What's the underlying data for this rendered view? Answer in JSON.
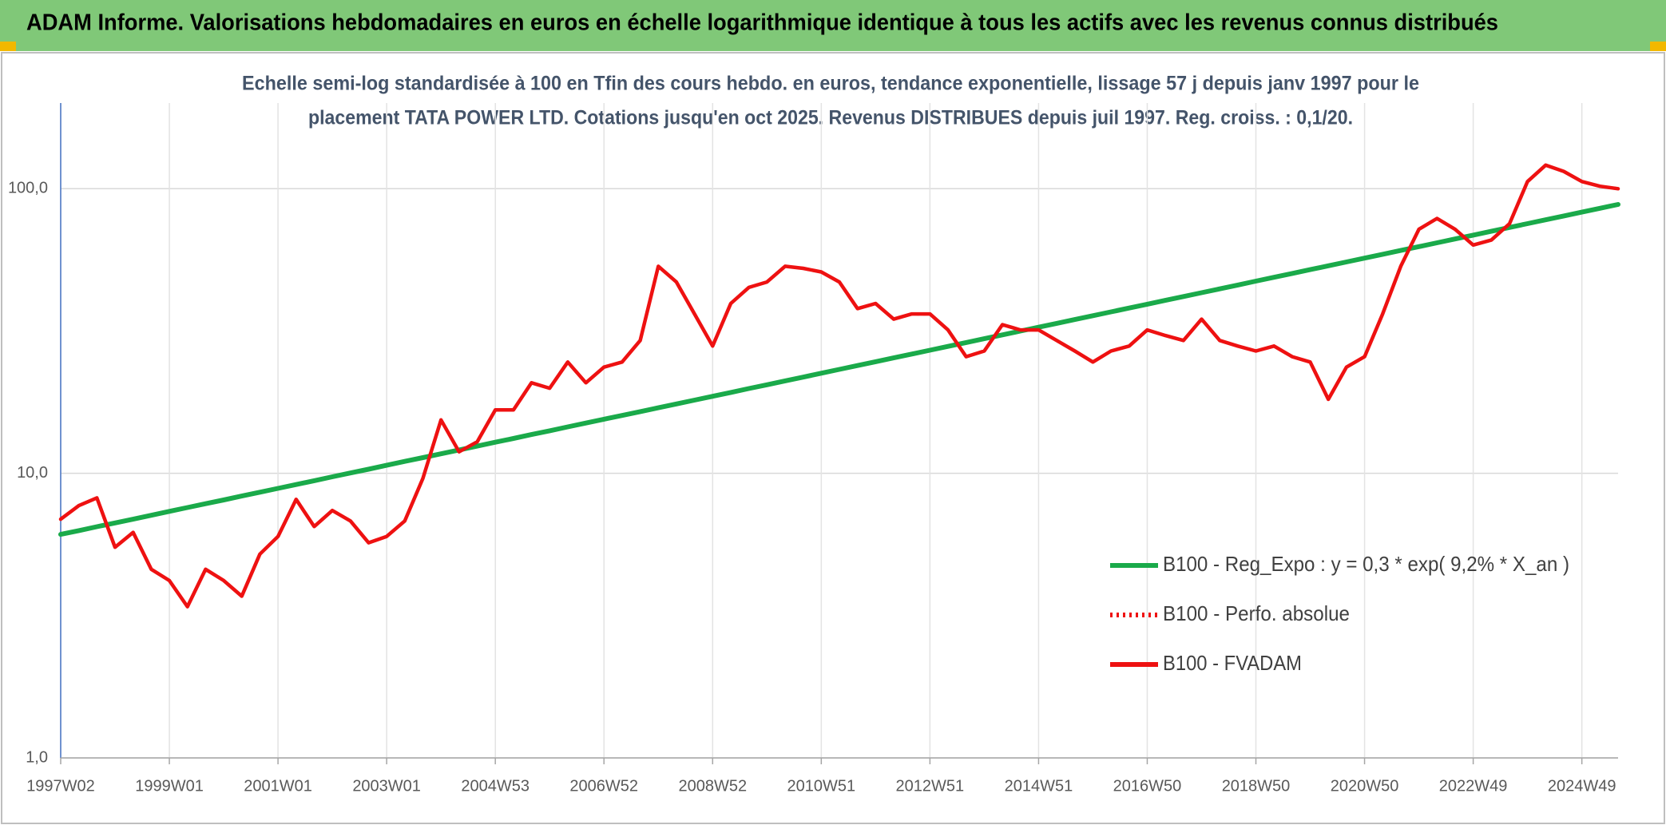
{
  "chart_data": {
    "type": "line",
    "title": "ADAM Informe. Valorisations hebdomadaires en euros en échelle logarithmique identique à tous les actifs avec les revenus connus distribués",
    "subtitle": [
      "Echelle semi-log standardisée à 100 en Tfin des cours hebdo. en euros, tendance exponentielle, lissage 57 j depuis janv 1997 pour le",
      "placement TATA POWER LTD. Cotations jusqu'en oct 2025. Revenus DISTRIBUES depuis juil 1997. Reg. croiss. : 0,1/20."
    ],
    "log_scale": true,
    "grid": true,
    "legend": "lower right",
    "ylim": [
      1,
      200
    ],
    "yticks": [
      {
        "value": 1,
        "label": "1,0"
      },
      {
        "value": 10,
        "label": "10,0"
      },
      {
        "value": 100,
        "label": "100,0"
      }
    ],
    "categories": [
      "1997W02",
      null,
      null,
      null,
      null,
      null,
      "1999W01",
      null,
      null,
      null,
      null,
      null,
      "2001W01",
      null,
      null,
      null,
      null,
      null,
      "2003W01",
      null,
      null,
      null,
      null,
      null,
      "2004W53",
      null,
      null,
      null,
      null,
      null,
      "2006W52",
      null,
      null,
      null,
      null,
      null,
      "2008W52",
      null,
      null,
      null,
      null,
      null,
      "2010W51",
      null,
      null,
      null,
      null,
      null,
      "2012W51",
      null,
      null,
      null,
      null,
      null,
      "2014W51",
      null,
      null,
      null,
      null,
      null,
      "2016W50",
      null,
      null,
      null,
      null,
      null,
      "2018W50",
      null,
      null,
      null,
      null,
      null,
      "2020W50",
      null,
      null,
      null,
      null,
      null,
      "2022W49",
      null,
      null,
      null,
      null,
      null,
      "2024W49",
      null,
      null
    ],
    "series": [
      {
        "name": "B100 - Reg_Expo : y = 0,3 * exp( 9,2% *  X_an )",
        "color": "#1aaa4a",
        "style": "solid",
        "values": [
          6.1,
          6.29,
          6.49,
          6.69,
          6.9,
          7.12,
          7.35,
          7.58,
          7.82,
          8.06,
          8.32,
          8.58,
          8.85,
          9.13,
          9.42,
          9.72,
          10.03,
          10.34,
          10.67,
          11.01,
          11.35,
          11.71,
          12.08,
          12.46,
          12.86,
          13.26,
          13.68,
          14.11,
          14.56,
          15.02,
          15.49,
          15.97,
          16.47,
          16.99,
          17.53,
          18.08,
          18.65,
          19.24,
          19.85,
          20.47,
          21.12,
          21.78,
          22.47,
          23.18,
          23.91,
          24.66,
          25.44,
          26.24,
          27.07,
          27.92,
          28.8,
          29.71,
          30.65,
          31.61,
          32.61,
          33.64,
          34.7,
          35.79,
          36.92,
          38.08,
          39.28,
          40.52,
          41.8,
          43.12,
          44.48,
          45.88,
          47.33,
          48.82,
          50.36,
          51.95,
          53.58,
          55.27,
          57.01,
          58.81,
          60.66,
          62.57,
          64.55,
          66.58,
          68.68,
          70.85,
          73.08,
          75.39,
          77.77,
          80.22,
          82.75,
          85.36,
          88.05
        ]
      },
      {
        "name": "B100 - Perfo. absolue",
        "color": "#ee1111",
        "style": "dotted",
        "values": [
          6.9,
          7.7,
          8.2,
          5.5,
          6.2,
          4.6,
          4.2,
          3.4,
          4.6,
          4.2,
          3.7,
          5.2,
          6.0,
          8.1,
          6.5,
          7.4,
          6.8,
          5.7,
          6.0,
          6.8,
          9.6,
          15.4,
          11.9,
          12.9,
          16.7,
          16.7,
          20.8,
          19.9,
          24.6,
          20.8,
          23.6,
          24.6,
          29.3,
          53.4,
          47,
          36.3,
          28,
          39.5,
          45,
          47,
          53.4,
          52.5,
          51,
          47,
          37.9,
          39.5,
          34.8,
          36.3,
          36.3,
          31.9,
          25.7,
          26.9,
          33.3,
          31.9,
          31.9,
          29.3,
          26.9,
          24.6,
          26.9,
          28,
          31.9,
          30.5,
          29.3,
          34.8,
          29.3,
          28,
          26.9,
          28,
          25.7,
          24.6,
          18.2,
          23.6,
          25.7,
          36.3,
          53.4,
          72,
          78.6,
          72,
          63.4,
          66,
          75.3,
          106,
          121,
          115,
          106,
          102,
          100
        ]
      },
      {
        "name": "B100 - FVADAM",
        "color": "#ee1111",
        "style": "solid",
        "values": [
          6.9,
          7.7,
          8.2,
          5.5,
          6.2,
          4.6,
          4.2,
          3.4,
          4.6,
          4.2,
          3.7,
          5.2,
          6.0,
          8.1,
          6.5,
          7.4,
          6.8,
          5.7,
          6.0,
          6.8,
          9.6,
          15.4,
          11.9,
          12.9,
          16.7,
          16.7,
          20.8,
          19.9,
          24.6,
          20.8,
          23.6,
          24.6,
          29.3,
          53.4,
          47,
          36.3,
          28,
          39.5,
          45,
          47,
          53.4,
          52.5,
          51,
          47,
          37.9,
          39.5,
          34.8,
          36.3,
          36.3,
          31.9,
          25.7,
          26.9,
          33.3,
          31.9,
          31.9,
          29.3,
          26.9,
          24.6,
          26.9,
          28,
          31.9,
          30.5,
          29.3,
          34.8,
          29.3,
          28,
          26.9,
          28,
          25.7,
          24.6,
          18.2,
          23.6,
          25.7,
          36.3,
          53.4,
          72,
          78.6,
          72,
          63.4,
          66,
          75.3,
          106,
          121,
          115,
          106,
          102,
          100
        ]
      }
    ]
  }
}
